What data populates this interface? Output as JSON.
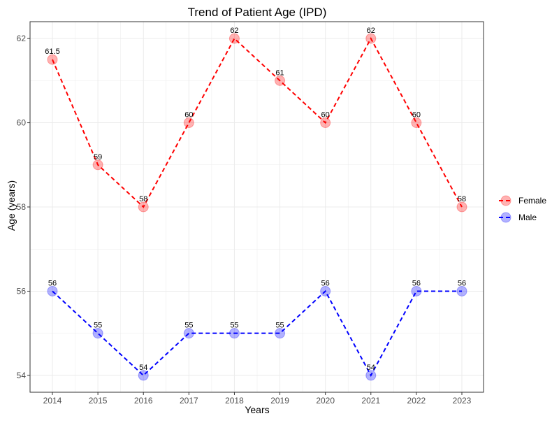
{
  "chart_data": {
    "type": "line",
    "title": "Trend of Patient Age (IPD)",
    "xlabel": "Years",
    "ylabel": "Age (years)",
    "categories": [
      "2014",
      "2015",
      "2016",
      "2017",
      "2018",
      "2019",
      "2020",
      "2021",
      "2022",
      "2023"
    ],
    "ylim": [
      53.6,
      62.4
    ],
    "yticks": [
      54,
      56,
      58,
      60,
      62
    ],
    "grid": true,
    "legend_position": "right",
    "series": [
      {
        "name": "Female",
        "color": "#FF0000",
        "values": [
          61.5,
          59,
          58,
          60,
          62,
          61,
          60,
          62,
          60,
          58
        ],
        "labels": [
          "61.5",
          "59",
          "58",
          "60",
          "62",
          "61",
          "60",
          "62",
          "60",
          "58"
        ]
      },
      {
        "name": "Male",
        "color": "#0000FF",
        "values": [
          56,
          55,
          54,
          55,
          55,
          55,
          56,
          54,
          56,
          56
        ],
        "labels": [
          "56",
          "55",
          "54",
          "55",
          "55",
          "55",
          "56",
          "54",
          "56",
          "56"
        ]
      }
    ]
  }
}
